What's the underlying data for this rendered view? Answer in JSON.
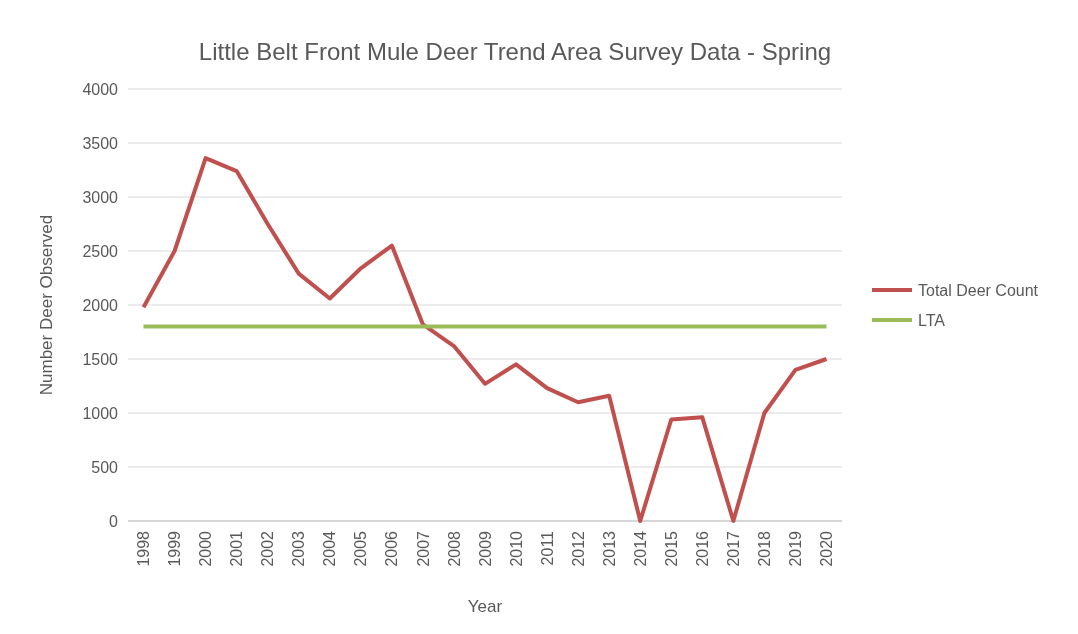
{
  "chart_data": {
    "type": "line",
    "title": "Little Belt Front Mule Deer Trend Area Survey Data - Spring",
    "xlabel": "Year",
    "ylabel": "Number Deer Observed",
    "categories": [
      "1998",
      "1999",
      "2000",
      "2001",
      "2002",
      "2003",
      "2004",
      "2005",
      "2006",
      "2007",
      "2008",
      "2009",
      "2010",
      "2011",
      "2012",
      "2013",
      "2014",
      "2015",
      "2016",
      "2017",
      "2018",
      "2019",
      "2020"
    ],
    "series": [
      {
        "name": "Total Deer Count",
        "color": "#c0504d",
        "values": [
          1980,
          2500,
          3360,
          3240,
          2750,
          2290,
          2060,
          2340,
          2550,
          1820,
          1620,
          1270,
          1450,
          1230,
          1100,
          1160,
          0,
          940,
          960,
          0,
          1000,
          1400,
          1500
        ]
      },
      {
        "name": "LTA",
        "color": "#9bbb59",
        "values": [
          1800,
          1800,
          1800,
          1800,
          1800,
          1800,
          1800,
          1800,
          1800,
          1800,
          1800,
          1800,
          1800,
          1800,
          1800,
          1800,
          1800,
          1800,
          1800,
          1800,
          1800,
          1800,
          1800
        ]
      }
    ],
    "ylim": [
      0,
      4000
    ],
    "yticks": [
      0,
      500,
      1000,
      1500,
      2000,
      2500,
      3000,
      3500,
      4000
    ],
    "grid": "y",
    "legend": "right",
    "marker": "none",
    "line_style": "solid"
  }
}
